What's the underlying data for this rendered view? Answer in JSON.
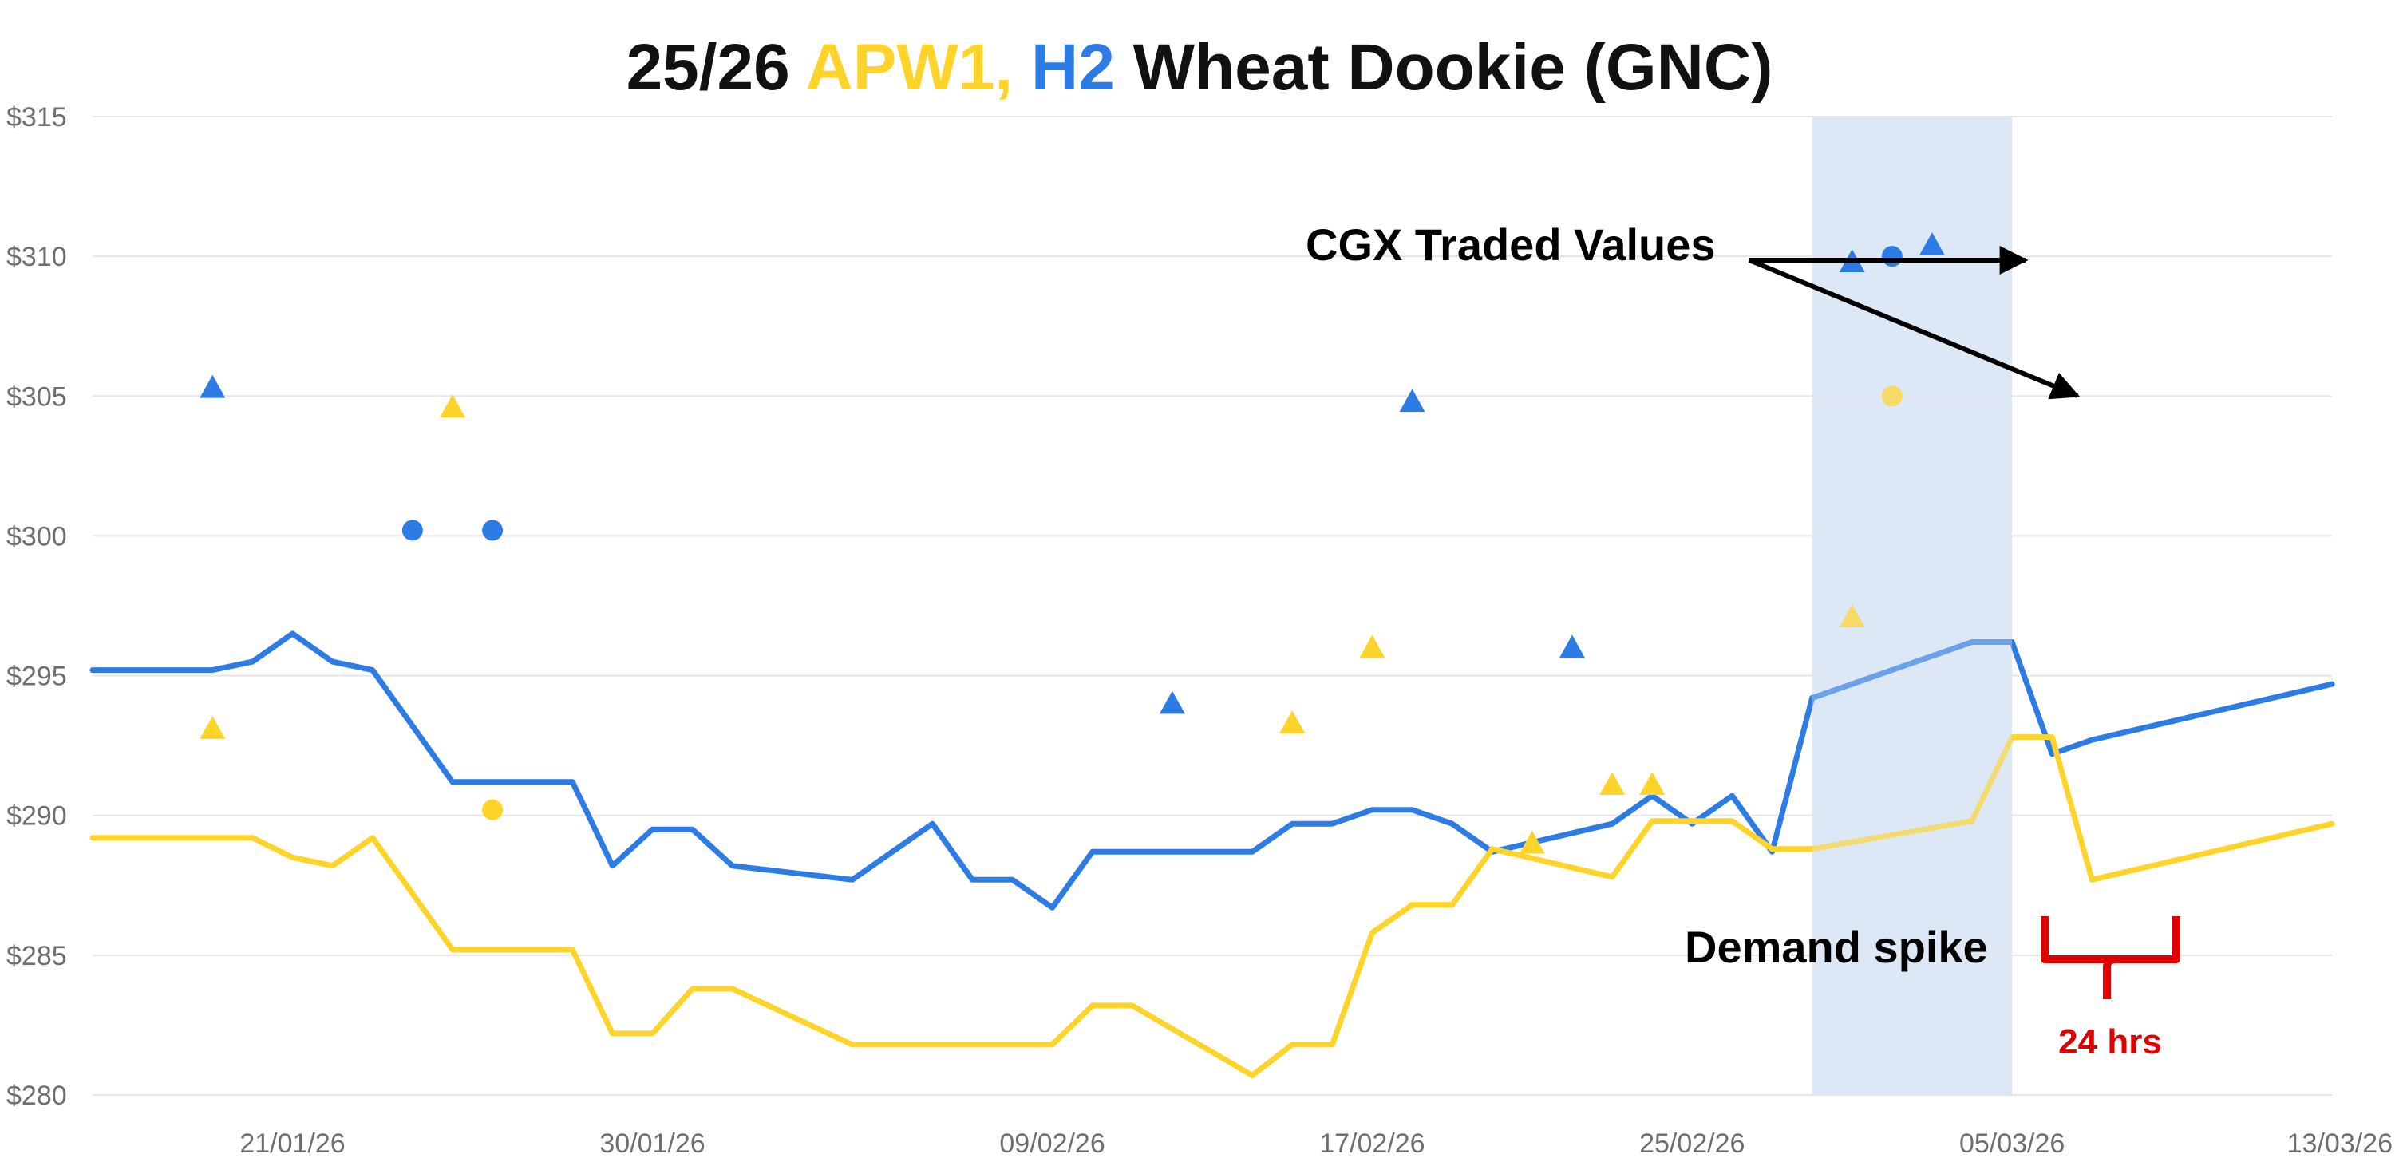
{
  "title": {
    "prefix": "25/26 ",
    "apw1": "APW1,",
    "space": " ",
    "h2": "H2",
    "suffix": " Wheat Dookie (GNC)"
  },
  "colors": {
    "apw1": "#ffd42a",
    "h2": "#2d7be4",
    "highlight": "#dce8f5",
    "grid": "#e6e6e6",
    "annotation_red": "#e10000"
  },
  "chart_data": {
    "type": "line",
    "x_range": [
      "2026-01-16",
      "2026-03-13"
    ],
    "xticks": [
      {
        "date": "2026-01-21",
        "label": "21/01/26"
      },
      {
        "date": "2026-01-30",
        "label": "30/01/26"
      },
      {
        "date": "2026-02-09",
        "label": "09/02/26"
      },
      {
        "date": "2026-02-17",
        "label": "17/02/26"
      },
      {
        "date": "2026-02-25",
        "label": "25/02/26"
      },
      {
        "date": "2026-03-05",
        "label": "05/03/26"
      },
      {
        "date": "2026-03-13",
        "label": "13/03/26"
      }
    ],
    "ylim": [
      280,
      315
    ],
    "yticks": [
      280,
      285,
      290,
      295,
      300,
      305,
      310,
      315
    ],
    "ytick_labels": [
      "$280",
      "$285",
      "$290",
      "$295",
      "$300",
      "$305",
      "$310",
      "$315"
    ],
    "grid": "horizontal",
    "series": [
      {
        "key": "h2",
        "type": "line",
        "color": "#2d7be4",
        "points": [
          [
            "2026-01-16",
            295.2
          ],
          [
            "2026-01-18",
            295.2
          ],
          [
            "2026-01-19",
            295.2
          ],
          [
            "2026-01-20",
            295.5
          ],
          [
            "2026-01-21",
            296.5
          ],
          [
            "2026-01-22",
            295.5
          ],
          [
            "2026-01-23",
            295.2
          ],
          [
            "2026-01-24",
            293.2
          ],
          [
            "2026-01-25",
            291.2
          ],
          [
            "2026-01-28",
            291.2
          ],
          [
            "2026-01-29",
            288.2
          ],
          [
            "2026-01-30",
            289.5
          ],
          [
            "2026-01-31",
            289.5
          ],
          [
            "2026-02-01",
            288.2
          ],
          [
            "2026-02-04",
            287.7
          ],
          [
            "2026-02-05",
            288.7
          ],
          [
            "2026-02-06",
            289.7
          ],
          [
            "2026-02-07",
            287.7
          ],
          [
            "2026-02-08",
            287.7
          ],
          [
            "2026-02-09",
            286.7
          ],
          [
            "2026-02-10",
            288.7
          ],
          [
            "2026-02-11",
            288.7
          ],
          [
            "2026-02-14",
            288.7
          ],
          [
            "2026-02-15",
            289.7
          ],
          [
            "2026-02-16",
            289.7
          ],
          [
            "2026-02-17",
            290.2
          ],
          [
            "2026-02-18",
            290.2
          ],
          [
            "2026-02-19",
            289.7
          ],
          [
            "2026-02-20",
            288.7
          ],
          [
            "2026-02-23",
            289.7
          ],
          [
            "2026-02-24",
            290.7
          ],
          [
            "2026-02-25",
            289.7
          ],
          [
            "2026-02-26",
            290.7
          ],
          [
            "2026-02-27",
            288.7
          ],
          [
            "2026-02-28",
            294.2
          ],
          [
            "2026-03-04",
            296.2
          ],
          [
            "2026-03-05",
            296.2
          ],
          [
            "2026-03-06",
            292.2
          ],
          [
            "2026-03-07",
            292.7
          ],
          [
            "2026-03-13",
            294.7
          ]
        ]
      },
      {
        "key": "apw1",
        "type": "line",
        "color": "#ffd42a",
        "points": [
          [
            "2026-01-16",
            289.2
          ],
          [
            "2026-01-18",
            289.2
          ],
          [
            "2026-01-19",
            289.2
          ],
          [
            "2026-01-20",
            289.2
          ],
          [
            "2026-01-21",
            288.5
          ],
          [
            "2026-01-22",
            288.2
          ],
          [
            "2026-01-23",
            289.2
          ],
          [
            "2026-01-24",
            287.2
          ],
          [
            "2026-01-25",
            285.2
          ],
          [
            "2026-01-28",
            285.2
          ],
          [
            "2026-01-29",
            282.2
          ],
          [
            "2026-01-30",
            282.2
          ],
          [
            "2026-01-31",
            283.8
          ],
          [
            "2026-02-01",
            283.8
          ],
          [
            "2026-02-04",
            281.8
          ],
          [
            "2026-02-05",
            281.8
          ],
          [
            "2026-02-06",
            281.8
          ],
          [
            "2026-02-07",
            281.8
          ],
          [
            "2026-02-08",
            281.8
          ],
          [
            "2026-02-09",
            281.8
          ],
          [
            "2026-02-10",
            283.2
          ],
          [
            "2026-02-11",
            283.2
          ],
          [
            "2026-02-14",
            280.7
          ],
          [
            "2026-02-15",
            281.8
          ],
          [
            "2026-02-16",
            281.8
          ],
          [
            "2026-02-17",
            285.8
          ],
          [
            "2026-02-18",
            286.8
          ],
          [
            "2026-02-19",
            286.8
          ],
          [
            "2026-02-20",
            288.8
          ],
          [
            "2026-02-23",
            287.8
          ],
          [
            "2026-02-24",
            289.8
          ],
          [
            "2026-02-25",
            289.8
          ],
          [
            "2026-02-26",
            289.8
          ],
          [
            "2026-02-27",
            288.8
          ],
          [
            "2026-02-28",
            288.8
          ],
          [
            "2026-03-04",
            289.8
          ],
          [
            "2026-03-05",
            292.8
          ],
          [
            "2026-03-06",
            292.8
          ],
          [
            "2026-03-07",
            287.7
          ],
          [
            "2026-03-13",
            289.7
          ]
        ]
      }
    ],
    "markers": [
      {
        "series": "h2",
        "shape": "triangle",
        "x": "2026-01-19",
        "y": 305.3
      },
      {
        "series": "h2",
        "shape": "circle",
        "x": "2026-01-24",
        "y": 300.2
      },
      {
        "series": "h2",
        "shape": "circle",
        "x": "2026-01-26",
        "y": 300.2
      },
      {
        "series": "h2",
        "shape": "triangle",
        "x": "2026-02-12",
        "y": 294.0
      },
      {
        "series": "h2",
        "shape": "triangle",
        "x": "2026-02-18",
        "y": 304.8
      },
      {
        "series": "h2",
        "shape": "triangle",
        "x": "2026-02-22",
        "y": 296.0
      },
      {
        "series": "h2",
        "shape": "triangle",
        "x": "2026-03-01",
        "y": 309.8
      },
      {
        "series": "h2",
        "shape": "circle",
        "x": "2026-03-02",
        "y": 310.0
      },
      {
        "series": "h2",
        "shape": "triangle",
        "x": "2026-03-03",
        "y": 310.4
      },
      {
        "series": "apw1",
        "shape": "triangle",
        "x": "2026-01-19",
        "y": 293.1
      },
      {
        "series": "apw1",
        "shape": "triangle",
        "x": "2026-01-25",
        "y": 304.6
      },
      {
        "series": "apw1",
        "shape": "circle",
        "x": "2026-01-26",
        "y": 290.2
      },
      {
        "series": "apw1",
        "shape": "triangle",
        "x": "2026-02-15",
        "y": 293.3
      },
      {
        "series": "apw1",
        "shape": "triangle",
        "x": "2026-02-17",
        "y": 296.0
      },
      {
        "series": "apw1",
        "shape": "triangle",
        "x": "2026-02-21",
        "y": 289.0
      },
      {
        "series": "apw1",
        "shape": "triangle",
        "x": "2026-02-23",
        "y": 291.1
      },
      {
        "series": "apw1",
        "shape": "triangle",
        "x": "2026-02-24",
        "y": 291.1
      },
      {
        "series": "apw1",
        "shape": "triangle",
        "x": "2026-03-01",
        "y": 297.1
      },
      {
        "series": "apw1",
        "shape": "circle",
        "x": "2026-03-02",
        "y": 305.0
      }
    ],
    "highlight_band": {
      "from": "2026-02-28",
      "to": "2026-03-05"
    },
    "annotations": {
      "cgx_label": "CGX Traded Values",
      "demand_label": "Demand spike",
      "duration_label": "24 hrs"
    }
  }
}
